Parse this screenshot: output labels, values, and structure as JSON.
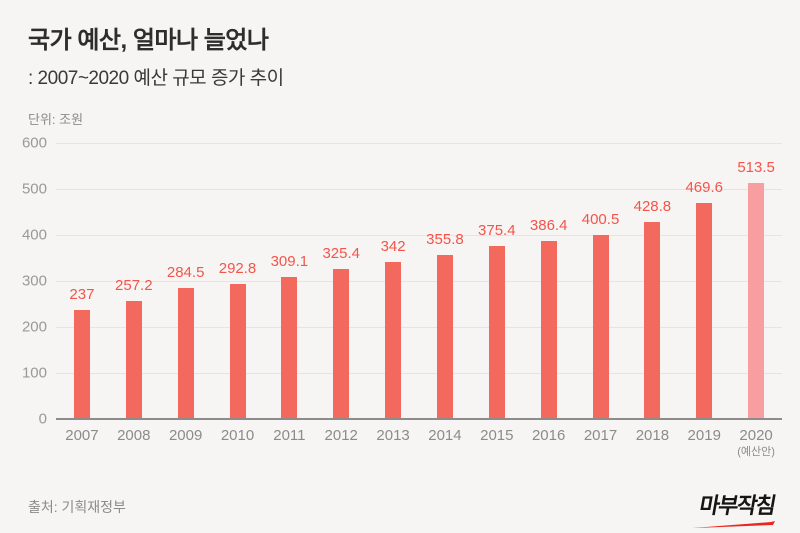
{
  "header": {
    "title": "국가 예산, 얼마나 늘었나",
    "subtitle": ": 2007~2020 예산 규모 증가 추이"
  },
  "chart": {
    "unit_label": "단위: 조원"
  },
  "chart_data": {
    "type": "bar",
    "title": "국가 예산, 얼마나 늘었나",
    "subtitle": ": 2007~2020 예산 규모 증가 추이",
    "unit": "조원",
    "categories": [
      "2007",
      "2008",
      "2009",
      "2010",
      "2011",
      "2012",
      "2013",
      "2014",
      "2015",
      "2016",
      "2017",
      "2018",
      "2019",
      "2020"
    ],
    "values": [
      237,
      257.2,
      284.5,
      292.8,
      309.1,
      325.4,
      342,
      355.8,
      375.4,
      386.4,
      400.5,
      428.8,
      469.6,
      513.5
    ],
    "value_labels": [
      "237",
      "257.2",
      "284.5",
      "292.8",
      "309.1",
      "325.4",
      "342",
      "355.8",
      "375.4",
      "386.4",
      "400.5",
      "428.8",
      "469.6",
      "513.5"
    ],
    "last_category_note": "(예산안)",
    "xlabel": "",
    "ylabel": "조원",
    "ylim": [
      0,
      600
    ],
    "yticks": [
      0,
      100,
      200,
      300,
      400,
      500,
      600
    ],
    "grid": true,
    "legend": "none",
    "bar_color": "#f4695e",
    "highlight_last_color": "#f89da0",
    "value_label_color": "#f4544a"
  },
  "footer": {
    "source": "출처: 기획재정부",
    "logo_text": "마부작침"
  }
}
